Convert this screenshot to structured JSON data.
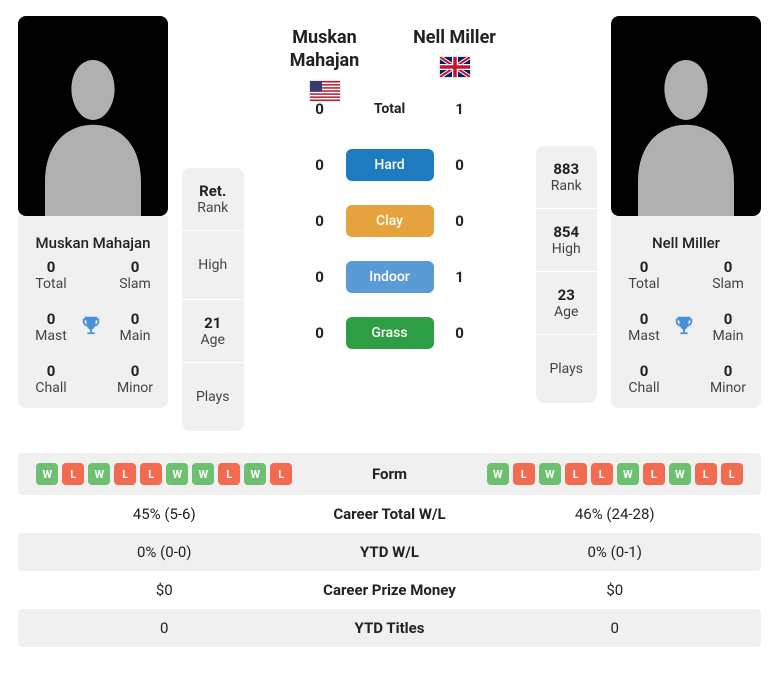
{
  "colors": {
    "win": "#6cc070",
    "loss": "#f26a4f",
    "hard": "#1f7bbf",
    "clay": "#e6a23c",
    "indoor": "#5b9bd5",
    "grass": "#2e9e44",
    "trophy": "#4a90d9",
    "card_bg": "#f0f0f0"
  },
  "p1": {
    "name": "Muskan Mahajan",
    "flag": "us",
    "titles": {
      "total": "0",
      "slam": "0",
      "mast": "0",
      "main": "0",
      "chall": "0",
      "minor": "0"
    },
    "info": {
      "rank_v": "Ret.",
      "rank_l": "Rank",
      "high_v": "",
      "high_l": "High",
      "age_v": "21",
      "age_l": "Age",
      "plays_l": "Plays"
    }
  },
  "p2": {
    "name": "Nell Miller",
    "flag": "gb",
    "titles": {
      "total": "0",
      "slam": "0",
      "mast": "0",
      "main": "0",
      "chall": "0",
      "minor": "0"
    },
    "info": {
      "rank_v": "883",
      "rank_l": "Rank",
      "high_v": "854",
      "high_l": "High",
      "age_v": "23",
      "age_l": "Age",
      "plays_l": "Plays"
    }
  },
  "h2h": {
    "total": {
      "l": "0",
      "label": "Total",
      "r": "1"
    },
    "hard": {
      "l": "0",
      "label": "Hard",
      "r": "0"
    },
    "clay": {
      "l": "0",
      "label": "Clay",
      "r": "0"
    },
    "indoor": {
      "l": "0",
      "label": "Indoor",
      "r": "1"
    },
    "grass": {
      "l": "0",
      "label": "Grass",
      "r": "0"
    }
  },
  "labels": {
    "total": "Total",
    "slam": "Slam",
    "mast": "Mast",
    "main": "Main",
    "chall": "Chall",
    "minor": "Minor",
    "form": "Form",
    "career_wl": "Career Total W/L",
    "ytd_wl": "YTD W/L",
    "prize": "Career Prize Money",
    "ytd_titles": "YTD Titles"
  },
  "form": {
    "p1": [
      "W",
      "L",
      "W",
      "L",
      "L",
      "W",
      "W",
      "L",
      "W",
      "L"
    ],
    "p2": [
      "W",
      "L",
      "W",
      "L",
      "L",
      "W",
      "L",
      "W",
      "L",
      "L"
    ]
  },
  "stats": {
    "career_wl": {
      "p1": "45% (5-6)",
      "p2": "46% (24-28)"
    },
    "ytd_wl": {
      "p1": "0% (0-0)",
      "p2": "0% (0-1)"
    },
    "prize": {
      "p1": "$0",
      "p2": "$0"
    },
    "ytd_titles": {
      "p1": "0",
      "p2": "0"
    }
  }
}
